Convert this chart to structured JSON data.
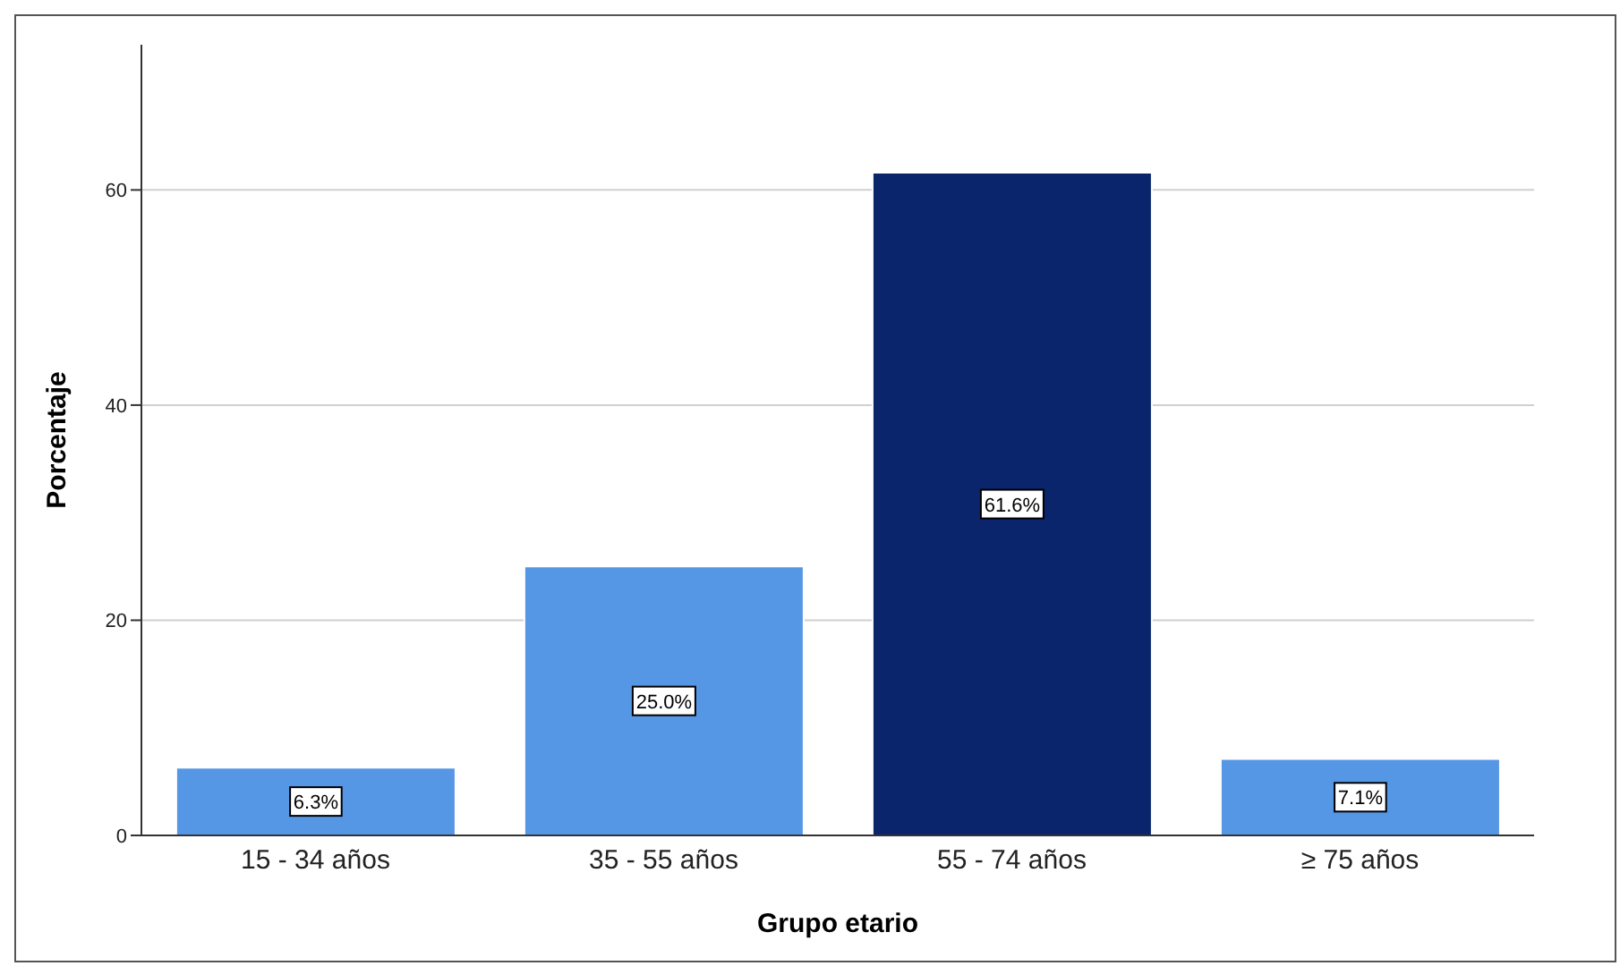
{
  "chart_data": {
    "type": "bar",
    "xlabel": "Grupo etario",
    "ylabel": "Porcentaje",
    "categories": [
      "15 - 34 años",
      "35 - 55 años",
      "55 - 74 años",
      "≥ 75 años"
    ],
    "values": [
      6.3,
      25.0,
      61.6,
      7.1
    ],
    "colors": [
      "#5596e5",
      "#5596e5",
      "#0a256b",
      "#5596e5"
    ],
    "value_labels": [
      "6.3%",
      "25.0%",
      "61.6%",
      "7.1%"
    ],
    "ylim": [
      0,
      73.5
    ],
    "yticks": [
      0,
      20,
      40,
      60
    ],
    "grid": "y"
  }
}
